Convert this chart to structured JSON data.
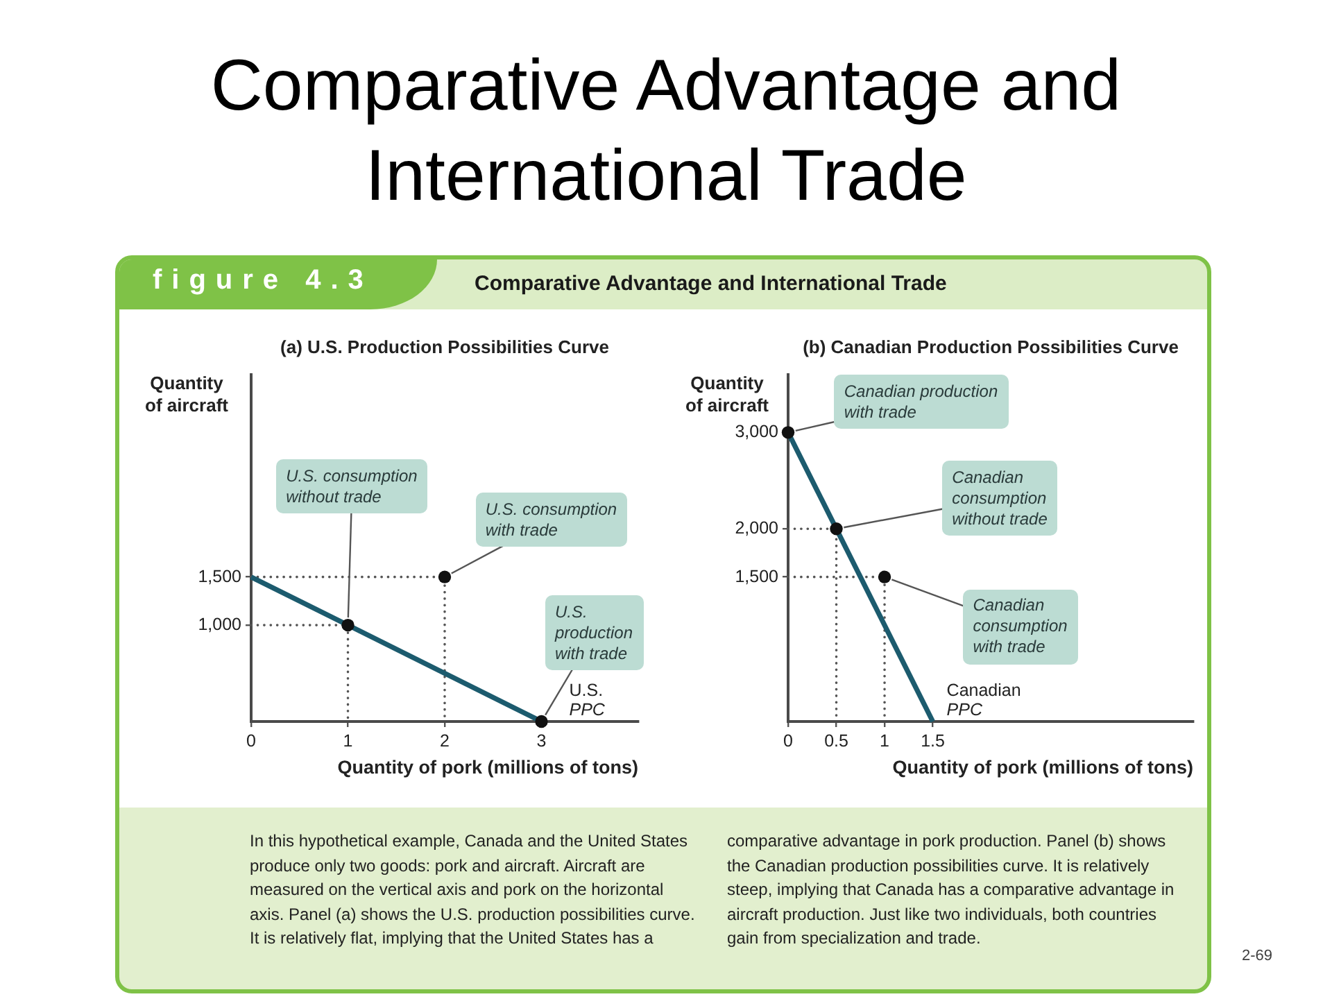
{
  "chart_data": [
    {
      "type": "other",
      "title": "Comparative Advantage and International Trade",
      "annotations": [
        "figure 4.3",
        "Comparative Advantage and International Trade"
      ]
    },
    {
      "type": "line",
      "title": "(a) U.S. Production Possibilities Curve",
      "xlabel": "Quantity of pork (millions of tons)",
      "ylabel": "Quantity of aircraft",
      "xlim": [
        0,
        4
      ],
      "ylim": [
        0,
        3600
      ],
      "xticks": [
        0,
        1,
        2,
        3
      ],
      "yticks": [
        {
          "value": 1000,
          "label": "1,000"
        },
        {
          "value": 1500,
          "label": "1,500"
        }
      ],
      "series": [
        {
          "type": "line",
          "color": "#555555",
          "line_style": "dotted",
          "marker": "none",
          "x": [
            0,
            1,
            1
          ],
          "values": [
            1000,
            1000,
            0
          ]
        },
        {
          "type": "line",
          "color": "#555555",
          "line_style": "dotted",
          "marker": "none",
          "x": [
            0,
            2,
            2
          ],
          "values": [
            1500,
            1500,
            0
          ]
        },
        {
          "type": "line",
          "name": "U.S. PPC",
          "color": "#1c5b6e",
          "line_style": "solid",
          "marker": "none",
          "x": [
            0,
            3
          ],
          "values": [
            1500,
            0
          ]
        },
        {
          "type": "scatter",
          "color": "#111111",
          "marker": "circle",
          "x": [
            1,
            2,
            3
          ],
          "values": [
            1000,
            1500,
            0
          ]
        }
      ],
      "annotations": [
        {
          "text": "U.S. consumption without trade",
          "x": 1,
          "y": 1000
        },
        {
          "text": "U.S. consumption with trade",
          "x": 2,
          "y": 1500
        },
        {
          "text": "U.S. production with trade",
          "x": 3,
          "y": 0
        }
      ]
    },
    {
      "type": "line",
      "title": "(b) Canadian Production Possibilities Curve",
      "xlabel": "Quantity of pork (millions of tons)",
      "ylabel": "Quantity of aircraft",
      "xlim": [
        0,
        4.2
      ],
      "ylim": [
        0,
        3600
      ],
      "xticks": [
        0,
        0.5,
        1,
        1.5
      ],
      "yticks": [
        {
          "value": 1500,
          "label": "1,500"
        },
        {
          "value": 2000,
          "label": "2,000"
        },
        {
          "value": 3000,
          "label": "3,000"
        }
      ],
      "series": [
        {
          "type": "line",
          "color": "#555555",
          "line_style": "dotted",
          "marker": "none",
          "x": [
            0,
            0.5,
            0.5
          ],
          "values": [
            2000,
            2000,
            0
          ]
        },
        {
          "type": "line",
          "color": "#555555",
          "line_style": "dotted",
          "marker": "none",
          "x": [
            0,
            1,
            1
          ],
          "values": [
            1500,
            1500,
            0
          ]
        },
        {
          "type": "line",
          "name": "Canadian PPC",
          "color": "#1c5b6e",
          "line_style": "solid",
          "marker": "none",
          "x": [
            0,
            1.5
          ],
          "values": [
            3000,
            0
          ]
        },
        {
          "type": "scatter",
          "color": "#111111",
          "marker": "circle",
          "x": [
            0,
            0.5,
            1
          ],
          "values": [
            3000,
            2000,
            1500
          ]
        }
      ],
      "annotations": [
        {
          "text": "Canadian production with trade",
          "x": 0,
          "y": 3000
        },
        {
          "text": "Canadian consumption without trade",
          "x": 0.5,
          "y": 2000
        },
        {
          "text": "Canadian consumption with trade",
          "x": 1,
          "y": 1500
        }
      ]
    },
    {
      "type": "other",
      "annotations": [
        "In this hypothetical example, Canada and the United States produce only two goods: pork and aircraft. Aircraft are measured on the vertical axis and pork on the horizontal axis. Panel (a) shows the U.S. production possibilities curve. It is relatively flat, implying that the United States has a comparative advantage in pork production. Panel (b) shows the Canadian production possibilities curve. It is relatively steep, implying that Canada has a comparative advantage in aircraft production. Just like two individuals, both countries gain from specialization and trade.",
        "2-69"
      ]
    }
  ]
}
